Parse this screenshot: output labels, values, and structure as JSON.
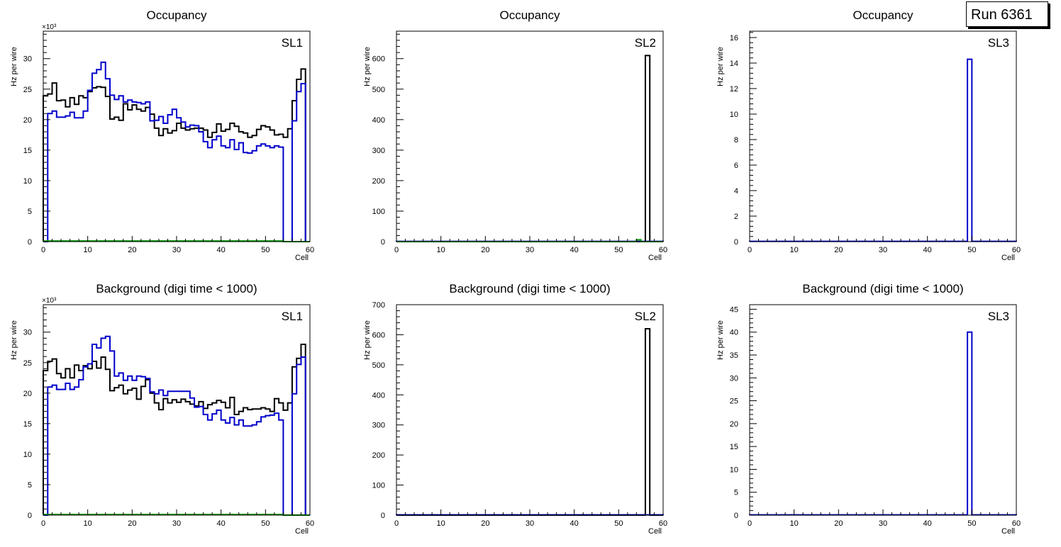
{
  "run_label": "Run 6361",
  "colors": {
    "black": "#000000",
    "blue": "#0000cc",
    "green": "#009900",
    "axis": "#000000"
  },
  "chart_data": [
    {
      "type": "line",
      "title": "Occupancy",
      "label": "SL1",
      "xlabel": "Cell",
      "ylabel": "Hz per wire",
      "exponent": "×10³",
      "xlim": [
        0,
        60
      ],
      "ylim": [
        0,
        34.5
      ],
      "xticks": [
        0,
        10,
        20,
        30,
        40,
        50,
        60
      ],
      "yticks": [
        0,
        5,
        10,
        15,
        20,
        25,
        30
      ],
      "series": [
        {
          "name": "layer-black",
          "color": "#000000",
          "values": [
            23.9,
            24.2,
            26.0,
            23.1,
            23.2,
            22.1,
            23.6,
            22.5,
            23.9,
            23.6,
            24.6,
            25.2,
            25.4,
            25.3,
            23.8,
            20.1,
            20.4,
            19.9,
            22.6,
            21.6,
            22.4,
            21.7,
            21.4,
            22.0,
            20.9,
            18.6,
            17.4,
            18.5,
            17.8,
            18.2,
            19.4,
            18.6,
            18.3,
            18.5,
            18.6,
            18.6,
            18.3,
            17.1,
            17.9,
            19.3,
            18.1,
            18.4,
            19.4,
            18.9,
            18.0,
            17.8,
            17.1,
            17.4,
            18.4,
            19.0,
            18.8,
            18.3,
            17.5,
            17.6,
            17.1,
            18.5,
            23.1,
            26.6,
            28.3,
            0
          ]
        },
        {
          "name": "layer-blue",
          "color": "#0000cc",
          "values": [
            0,
            21.0,
            21.4,
            20.4,
            20.4,
            20.6,
            21.2,
            20.3,
            20.3,
            21.4,
            24.8,
            27.6,
            28.2,
            29.4,
            26.7,
            24.0,
            23.3,
            23.9,
            22.9,
            23.2,
            22.9,
            22.8,
            22.6,
            22.9,
            19.8,
            19.9,
            20.5,
            19.4,
            20.8,
            21.7,
            20.3,
            19.6,
            18.8,
            19.1,
            19.0,
            18.0,
            16.4,
            15.4,
            16.7,
            17.3,
            15.7,
            15.4,
            16.7,
            15.1,
            16.2,
            14.6,
            14.5,
            14.9,
            15.7,
            16.0,
            15.7,
            15.4,
            15.7,
            15.5,
            0,
            0,
            19.8,
            24.6,
            25.9,
            0
          ]
        },
        {
          "name": "layer-green",
          "color": "#009900",
          "values": [
            0.1,
            0.1,
            0.1,
            0.1,
            0.1,
            0.1,
            0.1,
            0.1,
            0.1,
            0.1,
            0.1,
            0.1,
            0.1,
            0.1,
            0.1,
            0.1,
            0.1,
            0.1,
            0.1,
            0.1,
            0.1,
            0.1,
            0.1,
            0.1,
            0.1,
            0.1,
            0.1,
            0.1,
            0.1,
            0.1,
            0.1,
            0.1,
            0.1,
            0.1,
            0.1,
            0.1,
            0.1,
            0.1,
            0.1,
            0.1,
            0.1,
            0.1,
            0.1,
            0.1,
            0.1,
            0.1,
            0.1,
            0.1,
            0.1,
            0.1,
            0.1,
            0.1,
            0.1,
            0.1,
            0,
            0,
            0,
            0,
            0,
            0
          ]
        }
      ]
    },
    {
      "type": "line",
      "title": "Occupancy",
      "label": "SL2",
      "xlabel": "Cell",
      "ylabel": "Hz per wire",
      "exponent": "",
      "xlim": [
        0,
        60
      ],
      "ylim": [
        0,
        690
      ],
      "xticks": [
        0,
        10,
        20,
        30,
        40,
        50,
        60
      ],
      "yticks": [
        0,
        100,
        200,
        300,
        400,
        500,
        600
      ],
      "series": [
        {
          "name": "layer-black",
          "color": "#000000",
          "values": [
            0,
            0,
            0,
            0,
            0,
            0,
            0,
            0,
            0,
            0,
            0,
            0,
            0,
            0,
            0,
            0,
            0,
            0,
            0,
            0,
            0,
            0,
            0,
            0,
            0,
            0,
            0,
            0,
            0,
            0,
            0,
            0,
            0,
            0,
            0,
            0,
            0,
            0,
            0,
            0,
            0,
            0,
            0,
            0,
            0,
            0,
            0,
            0,
            0,
            0,
            0,
            0,
            0,
            0,
            0,
            0,
            610,
            0,
            0,
            0
          ]
        },
        {
          "name": "layer-blue",
          "color": "#0000cc",
          "values": [
            1,
            1,
            1,
            1,
            1,
            1,
            1,
            1,
            1,
            1,
            1,
            1,
            1,
            1,
            1,
            1,
            1,
            1,
            1,
            1,
            1,
            1,
            1,
            1,
            1,
            1,
            1,
            1,
            1,
            1,
            1,
            1,
            1,
            1,
            1,
            1,
            1,
            1,
            1,
            1,
            1,
            1,
            1,
            1,
            1,
            1,
            1,
            1,
            1,
            1,
            1,
            1,
            1,
            1,
            1,
            1,
            1,
            1,
            1,
            1
          ]
        },
        {
          "name": "layer-green",
          "color": "#009900",
          "values": [
            0,
            0,
            0,
            0,
            0,
            0,
            0,
            0,
            0,
            0,
            0,
            0,
            0,
            0,
            0,
            0,
            0,
            0,
            0,
            0,
            0,
            0,
            0,
            0,
            0,
            0,
            0,
            0,
            0,
            0,
            0,
            0,
            0,
            0,
            0,
            0,
            0,
            0,
            0,
            0,
            0,
            0,
            0,
            0,
            0,
            0,
            0,
            0,
            0,
            0,
            0,
            0,
            0,
            0,
            6,
            0,
            0,
            0,
            0,
            0
          ]
        }
      ]
    },
    {
      "type": "line",
      "title": "Occupancy",
      "label": "SL3",
      "xlabel": "Cell",
      "ylabel": "Hz per wire",
      "exponent": "",
      "xlim": [
        0,
        60
      ],
      "ylim": [
        0,
        16.5
      ],
      "xticks": [
        0,
        10,
        20,
        30,
        40,
        50,
        60
      ],
      "yticks": [
        0,
        2,
        4,
        6,
        8,
        10,
        12,
        14,
        16
      ],
      "series": [
        {
          "name": "layer-blue",
          "color": "#0000cc",
          "values": [
            0.02,
            0.02,
            0.02,
            0.02,
            0.02,
            0.02,
            0.02,
            0.02,
            0.02,
            0.02,
            0.02,
            0.02,
            0.02,
            0.02,
            0.02,
            0.02,
            0.02,
            0.02,
            0.02,
            0.02,
            0.02,
            0.02,
            0.02,
            0.02,
            0.02,
            0.02,
            0.02,
            0.02,
            0.02,
            0.02,
            0.02,
            0.02,
            0.02,
            0.02,
            0.02,
            0.02,
            0.02,
            0.02,
            0.02,
            0.02,
            0.02,
            0.02,
            0.02,
            0.02,
            0.02,
            0.02,
            0.02,
            0.02,
            0.02,
            14.3,
            0.02,
            0.02,
            0.02,
            0.02,
            0.02,
            0.02,
            0.02,
            0.02,
            0.02,
            0.02
          ]
        }
      ]
    },
    {
      "type": "line",
      "title": "Background (digi time < 1000)",
      "label": "SL1",
      "xlabel": "Cell",
      "ylabel": "Hz per wire",
      "exponent": "×10³",
      "xlim": [
        0,
        60
      ],
      "ylim": [
        0,
        34.5
      ],
      "xticks": [
        0,
        10,
        20,
        30,
        40,
        50,
        60
      ],
      "yticks": [
        0,
        5,
        10,
        15,
        20,
        25,
        30
      ],
      "series": [
        {
          "name": "layer-black",
          "color": "#000000",
          "values": [
            23.7,
            25.2,
            25.6,
            23.2,
            22.5,
            24.0,
            22.5,
            24.6,
            23.7,
            24.5,
            24.0,
            25.2,
            24.1,
            25.9,
            23.9,
            20.4,
            20.9,
            21.3,
            19.9,
            20.5,
            20.8,
            19.0,
            21.1,
            22.2,
            20.0,
            18.4,
            17.3,
            19.1,
            18.4,
            18.9,
            18.5,
            19.0,
            18.6,
            18.2,
            17.9,
            18.6,
            17.5,
            18.1,
            18.4,
            18.8,
            18.5,
            17.6,
            19.3,
            16.5,
            17.0,
            17.6,
            17.3,
            17.4,
            17.4,
            17.6,
            17.4,
            17.0,
            19.1,
            18.4,
            17.2,
            18.4,
            24.3,
            25.7,
            28.0,
            0
          ]
        },
        {
          "name": "layer-blue",
          "color": "#0000cc",
          "values": [
            0,
            21.0,
            21.3,
            20.6,
            20.6,
            21.6,
            20.6,
            21.0,
            22.2,
            24.3,
            24.8,
            28.0,
            27.4,
            29.0,
            29.3,
            26.9,
            22.8,
            23.3,
            22.1,
            22.8,
            22.1,
            22.8,
            22.7,
            22.4,
            20.2,
            19.9,
            20.5,
            19.6,
            20.3,
            20.3,
            20.3,
            20.3,
            20.3,
            19.2,
            17.7,
            17.8,
            16.5,
            15.6,
            16.6,
            17.2,
            15.6,
            15.1,
            16.0,
            14.8,
            15.6,
            14.6,
            14.6,
            14.8,
            15.3,
            16.1,
            16.3,
            16.4,
            16.7,
            15.6,
            0,
            0,
            19.9,
            24.7,
            25.9,
            0
          ]
        },
        {
          "name": "layer-green",
          "color": "#009900",
          "values": [
            0.1,
            0.1,
            0.1,
            0.1,
            0.1,
            0.1,
            0.1,
            0.1,
            0.1,
            0.1,
            0.1,
            0.1,
            0.1,
            0.1,
            0.1,
            0.1,
            0.1,
            0.1,
            0.1,
            0.1,
            0.1,
            0.1,
            0.1,
            0.1,
            0.1,
            0.1,
            0.1,
            0.1,
            0.1,
            0.1,
            0.1,
            0.1,
            0.1,
            0.1,
            0.1,
            0.1,
            0.1,
            0.1,
            0.1,
            0.1,
            0.1,
            0.1,
            0.1,
            0.1,
            0.1,
            0.1,
            0.1,
            0.1,
            0.1,
            0.1,
            0.1,
            0.1,
            0.1,
            0.1,
            0,
            0,
            0,
            0,
            0,
            0
          ]
        }
      ]
    },
    {
      "type": "line",
      "title": "Background (digi time < 1000)",
      "label": "SL2",
      "xlabel": "Cell",
      "ylabel": "Hz per wire",
      "exponent": "",
      "xlim": [
        0,
        60
      ],
      "ylim": [
        0,
        700
      ],
      "xticks": [
        0,
        10,
        20,
        30,
        40,
        50,
        60
      ],
      "yticks": [
        0,
        100,
        200,
        300,
        400,
        500,
        600,
        700
      ],
      "series": [
        {
          "name": "layer-black",
          "color": "#000000",
          "values": [
            0,
            0,
            0,
            0,
            0,
            0,
            0,
            0,
            0,
            0,
            0,
            0,
            0,
            0,
            0,
            0,
            0,
            0,
            0,
            0,
            0,
            0,
            0,
            0,
            0,
            0,
            0,
            0,
            0,
            0,
            0,
            0,
            0,
            0,
            0,
            0,
            0,
            0,
            0,
            0,
            0,
            0,
            0,
            0,
            0,
            0,
            0,
            0,
            0,
            0,
            0,
            0,
            0,
            0,
            0,
            0,
            620,
            0,
            0,
            0
          ]
        },
        {
          "name": "layer-blue",
          "color": "#0000cc",
          "values": [
            1,
            1,
            1,
            1,
            1,
            1,
            1,
            1,
            1,
            1,
            1,
            1,
            1,
            1,
            1,
            1,
            1,
            1,
            1,
            1,
            1,
            1,
            1,
            1,
            1,
            1,
            1,
            1,
            1,
            1,
            1,
            1,
            1,
            1,
            1,
            1,
            1,
            1,
            1,
            1,
            1,
            1,
            1,
            1,
            1,
            1,
            1,
            1,
            1,
            1,
            1,
            1,
            1,
            1,
            1,
            1,
            1,
            1,
            1,
            1
          ]
        }
      ]
    },
    {
      "type": "line",
      "title": "Background (digi time < 1000)",
      "label": "SL3",
      "xlabel": "Cell",
      "ylabel": "Hz per wire",
      "exponent": "",
      "xlim": [
        0,
        60
      ],
      "ylim": [
        0,
        46
      ],
      "xticks": [
        0,
        10,
        20,
        30,
        40,
        50,
        60
      ],
      "yticks": [
        0,
        5,
        10,
        15,
        20,
        25,
        30,
        35,
        40,
        45
      ],
      "series": [
        {
          "name": "layer-blue",
          "color": "#0000cc",
          "values": [
            0.05,
            0.05,
            0.05,
            0.05,
            0.05,
            0.05,
            0.05,
            0.05,
            0.05,
            0.05,
            0.05,
            0.05,
            0.05,
            0.05,
            0.05,
            0.05,
            0.05,
            0.05,
            0.05,
            0.05,
            0.05,
            0.05,
            0.05,
            0.05,
            0.05,
            0.05,
            0.05,
            0.05,
            0.05,
            0.05,
            0.05,
            0.05,
            0.05,
            0.05,
            0.05,
            0.05,
            0.05,
            0.05,
            0.05,
            0.05,
            0.05,
            0.05,
            0.05,
            0.05,
            0.05,
            0.05,
            0.05,
            0.05,
            0.05,
            40.0,
            0.05,
            0.05,
            0.05,
            0.05,
            0.05,
            0.05,
            0.05,
            0.05,
            0.05,
            0.05
          ]
        }
      ]
    }
  ]
}
